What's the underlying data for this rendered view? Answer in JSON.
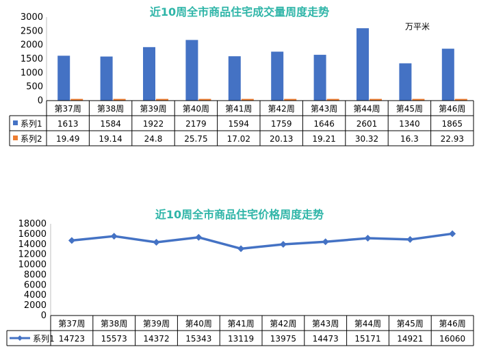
{
  "chart_data": [
    {
      "type": "bar",
      "title": "近10周全市商品住宅成交量周度走势",
      "unit_label": "万平米",
      "categories": [
        "第37周",
        "第38周",
        "第39周",
        "第40周",
        "第41周",
        "第42周",
        "第43周",
        "第44周",
        "第45周",
        "第46周"
      ],
      "ylim": [
        0,
        3000
      ],
      "yticks": [
        0,
        500,
        1000,
        1500,
        2000,
        2500,
        3000
      ],
      "grid": false,
      "legend": "data-table",
      "series": [
        {
          "name": "系列1",
          "color": "#4472c4",
          "values": [
            1613,
            1584,
            1922,
            2179,
            1594,
            1759,
            1646,
            2601,
            1340,
            1865
          ],
          "labels": [
            "1613",
            "1584",
            "1922",
            "2179",
            "1594",
            "1759",
            "1646",
            "2601",
            "1340",
            "1865"
          ]
        },
        {
          "name": "系列2",
          "color": "#ed7d31",
          "values": [
            19.49,
            19.14,
            24.8,
            25.75,
            17.02,
            20.13,
            19.21,
            30.32,
            16.3,
            22.93
          ],
          "labels": [
            "19.49",
            "19.14",
            "24.8",
            "25.75",
            "17.02",
            "20.13",
            "19.21",
            "30.32",
            "16.3",
            "22.93"
          ]
        }
      ]
    },
    {
      "type": "line",
      "title": "近10周全市商品住宅价格周度走势",
      "categories": [
        "第37周",
        "第38周",
        "第39周",
        "第40周",
        "第41周",
        "第42周",
        "第43周",
        "第44周",
        "第45周",
        "第46周"
      ],
      "ylim": [
        0,
        18000
      ],
      "yticks": [
        0,
        2000,
        4000,
        6000,
        8000,
        10000,
        12000,
        14000,
        16000,
        18000
      ],
      "grid": false,
      "legend": "data-table",
      "series": [
        {
          "name": "系列1",
          "color": "#4472c4",
          "values": [
            14723,
            15573,
            14372,
            15343,
            13119,
            13975,
            14473,
            15171,
            14921,
            16060
          ],
          "labels": [
            "14723",
            "15573",
            "14372",
            "15343",
            "13119",
            "13975",
            "14473",
            "15171",
            "14921",
            "16060"
          ]
        }
      ]
    }
  ]
}
